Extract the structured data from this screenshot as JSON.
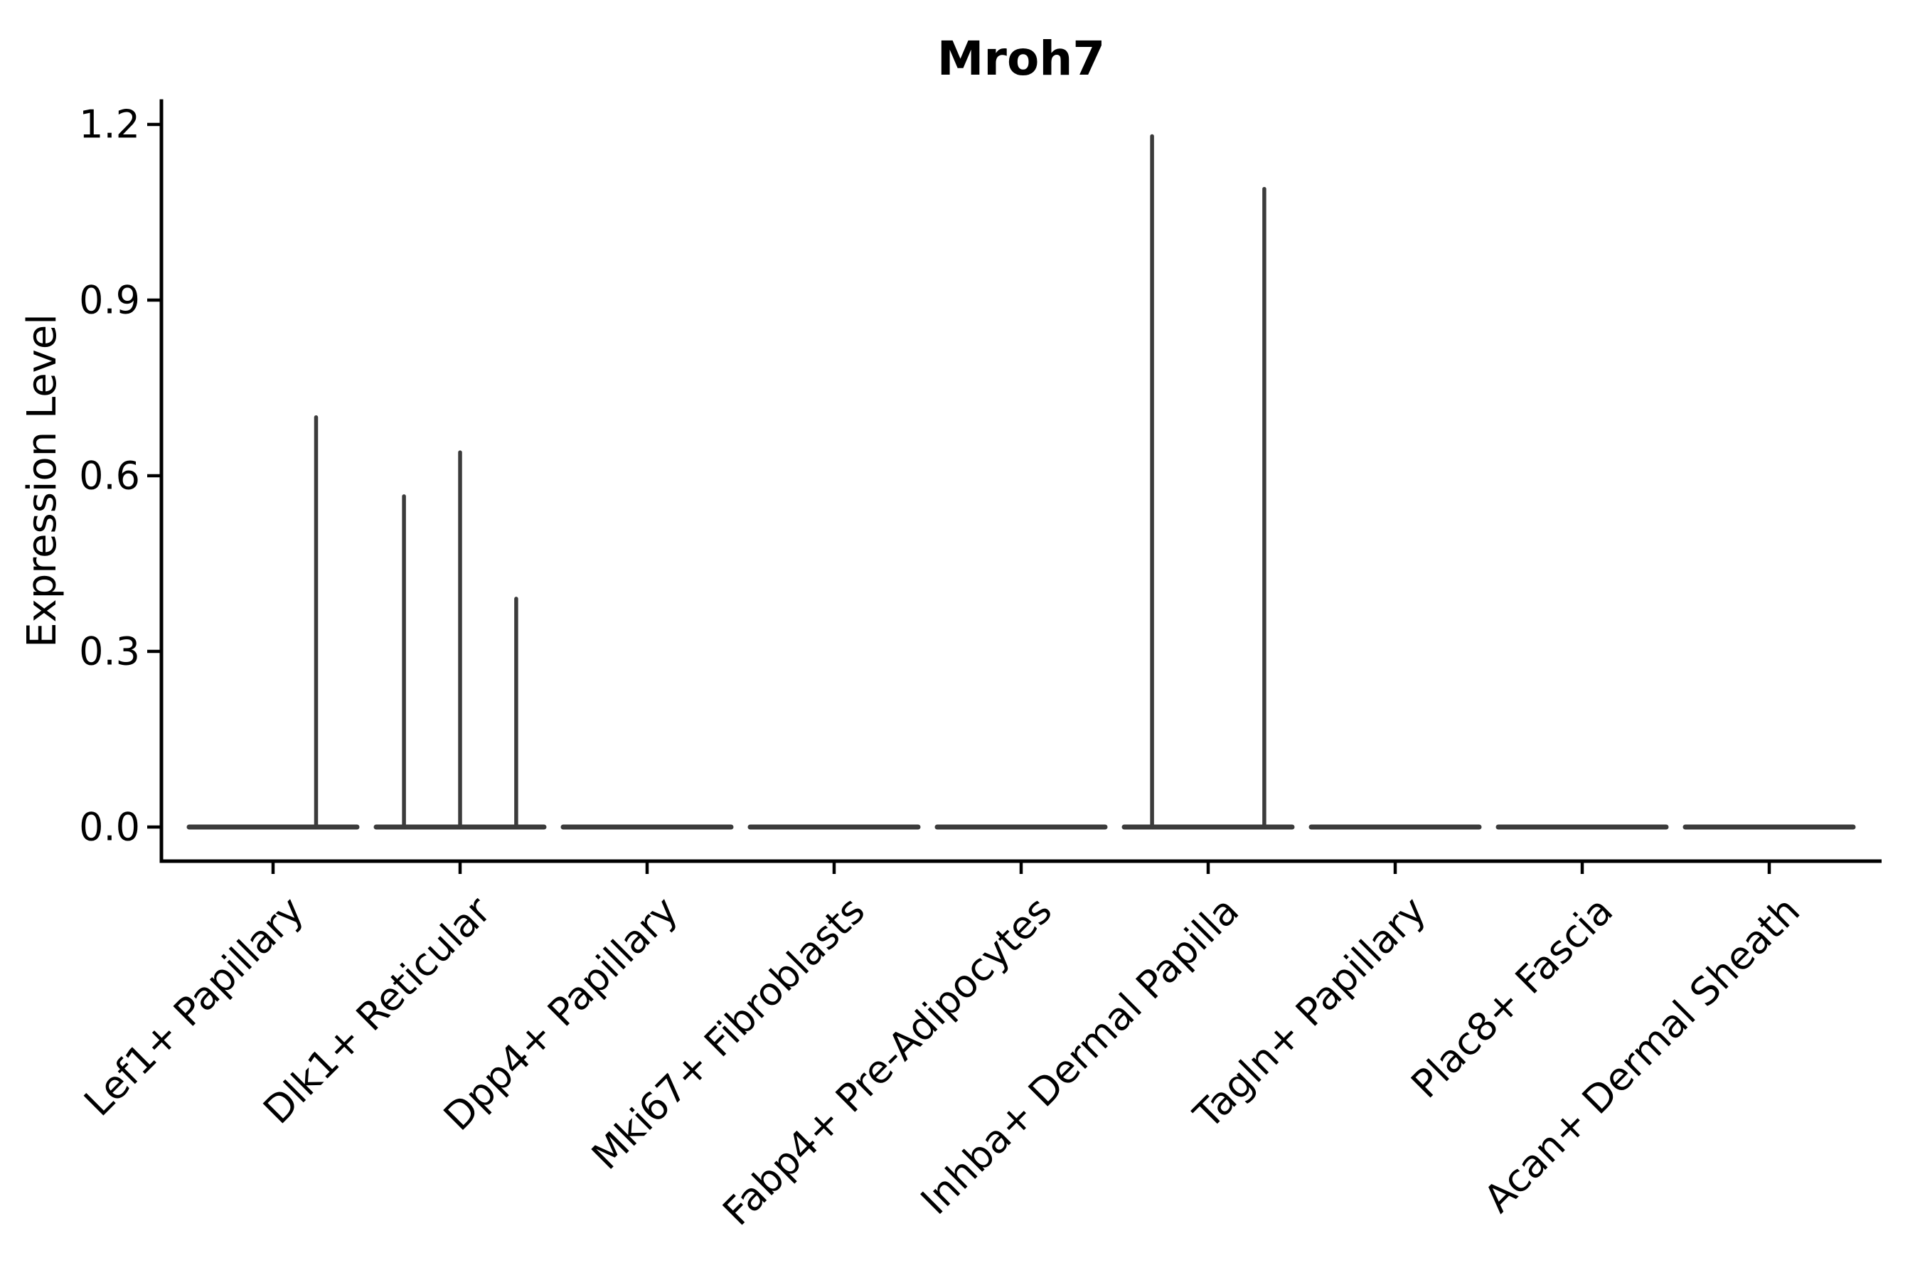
{
  "figure": {
    "background": "#ffffff"
  },
  "chart_data": {
    "type": "violin",
    "title": "Mroh7",
    "ylabel": "Expression Level",
    "xlabel": "",
    "grid": false,
    "legend": "none",
    "yticks": [
      0.0,
      0.3,
      0.6,
      0.9,
      1.2
    ],
    "ytick_labels": [
      "0.0",
      "0.3",
      "0.6",
      "0.9",
      "1.2"
    ],
    "ylim": [
      -0.058,
      1.243
    ],
    "categories": [
      "Lef1+ Papillary",
      "Dlk1+ Reticular",
      "Dpp4+ Papillary",
      "Mki67+ Fibroblasts",
      "Fabp4+ Pre-Adipocytes",
      "Inhba+ Dermal Papilla",
      "Tagln+ Papillary",
      "Plac8+ Fascia",
      "Acan+ Dermal Sheath"
    ],
    "violins": [
      {
        "category": "Lef1+ Papillary",
        "baseline_value": 0.0,
        "spikes": [
          {
            "dx": 0.23,
            "value": 0.7
          }
        ]
      },
      {
        "category": "Dlk1+ Reticular",
        "baseline_value": 0.0,
        "spikes": [
          {
            "dx": -0.3,
            "value": 0.565
          },
          {
            "dx": 0.0,
            "value": 0.64
          },
          {
            "dx": 0.3,
            "value": 0.39
          }
        ]
      },
      {
        "category": "Dpp4+ Papillary",
        "baseline_value": 0.0,
        "spikes": []
      },
      {
        "category": "Mki67+ Fibroblasts",
        "baseline_value": 0.0,
        "spikes": []
      },
      {
        "category": "Fabp4+ Pre-Adipocytes",
        "baseline_value": 0.0,
        "spikes": []
      },
      {
        "category": "Inhba+ Dermal Papilla",
        "baseline_value": 0.0,
        "spikes": [
          {
            "dx": -0.3,
            "value": 1.18
          },
          {
            "dx": 0.3,
            "value": 1.09
          }
        ]
      },
      {
        "category": "Tagln+ Papillary",
        "baseline_value": 0.0,
        "spikes": []
      },
      {
        "category": "Plac8+ Fascia",
        "baseline_value": 0.0,
        "spikes": []
      },
      {
        "category": "Acan+ Dermal Sheath",
        "baseline_value": 0.0,
        "spikes": []
      }
    ],
    "colors": {
      "axis": "#000000",
      "text": "#000000",
      "violin_stroke": "#3b3b3b",
      "background": "#ffffff"
    }
  }
}
